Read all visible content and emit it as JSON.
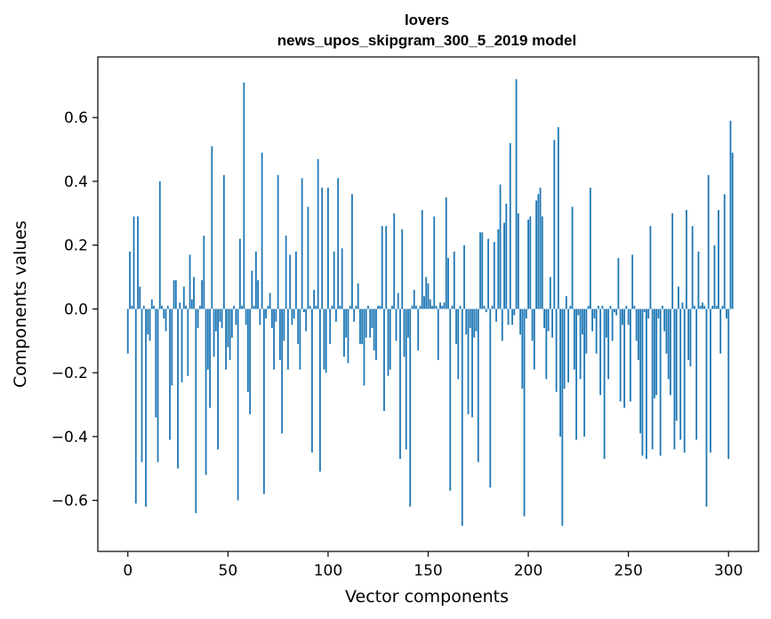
{
  "chart_data": {
    "type": "bar",
    "title": [
      "lovers",
      "news_upos_skipgram_300_5_2019 model"
    ],
    "xlabel": "Vector components",
    "ylabel": "Components values",
    "xlim": [
      -15,
      315
    ],
    "ylim": [
      -0.76,
      0.79
    ],
    "xticks": [
      0,
      50,
      100,
      150,
      200,
      250,
      300
    ],
    "xtick_labels": [
      "0",
      "50",
      "100",
      "150",
      "200",
      "250",
      "300"
    ],
    "yticks": [
      -0.6,
      -0.4,
      -0.2,
      0.0,
      0.2,
      0.4,
      0.6
    ],
    "ytick_labels": [
      "−0.6",
      "−0.4",
      "−0.2",
      "0.0",
      "0.2",
      "0.4",
      "0.6"
    ],
    "grid": false,
    "bar_color": "#1f77b4",
    "x_start": 0,
    "values": [
      -0.14,
      0.18,
      0.01,
      0.29,
      -0.61,
      0.29,
      0.07,
      -0.48,
      0.01,
      -0.62,
      -0.08,
      -0.1,
      0.03,
      0.01,
      -0.34,
      -0.48,
      0.4,
      0.01,
      -0.03,
      -0.07,
      0.01,
      -0.41,
      -0.24,
      0.09,
      0.09,
      -0.5,
      0.02,
      -0.23,
      0.07,
      0.01,
      -0.21,
      0.17,
      0.03,
      0.1,
      -0.64,
      -0.06,
      0.01,
      0.09,
      0.23,
      -0.52,
      -0.19,
      -0.31,
      0.51,
      -0.15,
      -0.07,
      -0.44,
      -0.04,
      -0.06,
      0.42,
      -0.19,
      -0.12,
      -0.16,
      -0.09,
      0.01,
      -0.05,
      -0.6,
      0.22,
      0.01,
      0.71,
      -0.05,
      -0.26,
      -0.33,
      0.12,
      0.01,
      0.18,
      0.09,
      -0.05,
      0.49,
      -0.58,
      -0.03,
      0.01,
      0.05,
      -0.06,
      -0.19,
      -0.04,
      0.42,
      -0.16,
      -0.39,
      -0.1,
      0.23,
      -0.19,
      0.17,
      -0.05,
      -0.03,
      0.18,
      -0.11,
      -0.19,
      0.41,
      -0.01,
      -0.07,
      0.32,
      0.01,
      -0.45,
      0.06,
      0.01,
      0.47,
      -0.51,
      0.38,
      -0.19,
      -0.2,
      0.38,
      -0.11,
      0.01,
      0.18,
      -0.04,
      0.41,
      0.01,
      0.19,
      -0.15,
      -0.09,
      -0.17,
      0.01,
      0.36,
      -0.04,
      0.01,
      0.08,
      -0.11,
      -0.11,
      -0.24,
      -0.09,
      0.01,
      -0.09,
      -0.06,
      -0.13,
      -0.16,
      0.01,
      0.01,
      0.26,
      -0.32,
      0.26,
      -0.21,
      -0.19,
      0.01,
      0.3,
      -0.1,
      0.05,
      -0.47,
      0.25,
      -0.15,
      -0.44,
      -0.09,
      -0.62,
      0.01,
      0.06,
      0.01,
      -0.13,
      0.01,
      0.31,
      0.04,
      0.1,
      0.08,
      0.03,
      0.01,
      0.29,
      0.01,
      -0.16,
      0.02,
      0.01,
      0.02,
      0.35,
      0.16,
      -0.57,
      0.01,
      0.18,
      -0.11,
      -0.22,
      0.01,
      -0.68,
      0.2,
      -0.08,
      -0.33,
      -0.06,
      -0.34,
      -0.09,
      -0.07,
      -0.48,
      0.24,
      0.24,
      0.01,
      -0.01,
      0.22,
      -0.56,
      0.01,
      0.21,
      -0.04,
      0.25,
      0.39,
      -0.1,
      0.27,
      0.33,
      -0.05,
      0.52,
      -0.05,
      -0.02,
      0.72,
      0.3,
      -0.08,
      -0.25,
      -0.65,
      -0.03,
      0.28,
      0.29,
      -0.1,
      -0.19,
      0.34,
      0.36,
      0.38,
      0.29,
      -0.06,
      -0.22,
      -0.07,
      0.1,
      -0.09,
      0.53,
      -0.26,
      0.57,
      -0.4,
      -0.68,
      -0.25,
      0.04,
      -0.23,
      0.01,
      0.32,
      -0.19,
      -0.41,
      -0.02,
      -0.22,
      -0.08,
      -0.4,
      -0.14,
      0.01,
      0.38,
      -0.07,
      -0.03,
      -0.14,
      0.01,
      -0.27,
      0.01,
      -0.47,
      -0.09,
      -0.22,
      0.01,
      -0.1,
      -0.01,
      -0.02,
      0.16,
      -0.29,
      -0.05,
      -0.31,
      0.01,
      -0.05,
      -0.29,
      0.17,
      0.01,
      -0.1,
      -0.16,
      -0.39,
      -0.46,
      -0.01,
      -0.47,
      -0.03,
      0.26,
      -0.44,
      -0.28,
      -0.27,
      -0.03,
      -0.46,
      0.01,
      -0.07,
      -0.14,
      -0.22,
      -0.27,
      0.3,
      -0.44,
      -0.35,
      0.07,
      -0.41,
      0.02,
      -0.45,
      0.31,
      -0.16,
      -0.18,
      0.26,
      0.01,
      -0.41,
      0.18,
      0.01,
      0.02,
      0.01,
      -0.62,
      0.42,
      -0.45,
      0.01,
      0.2,
      0.01,
      0.31,
      -0.14,
      0.01,
      0.36,
      -0.03,
      -0.47,
      0.59,
      0.49
    ]
  }
}
